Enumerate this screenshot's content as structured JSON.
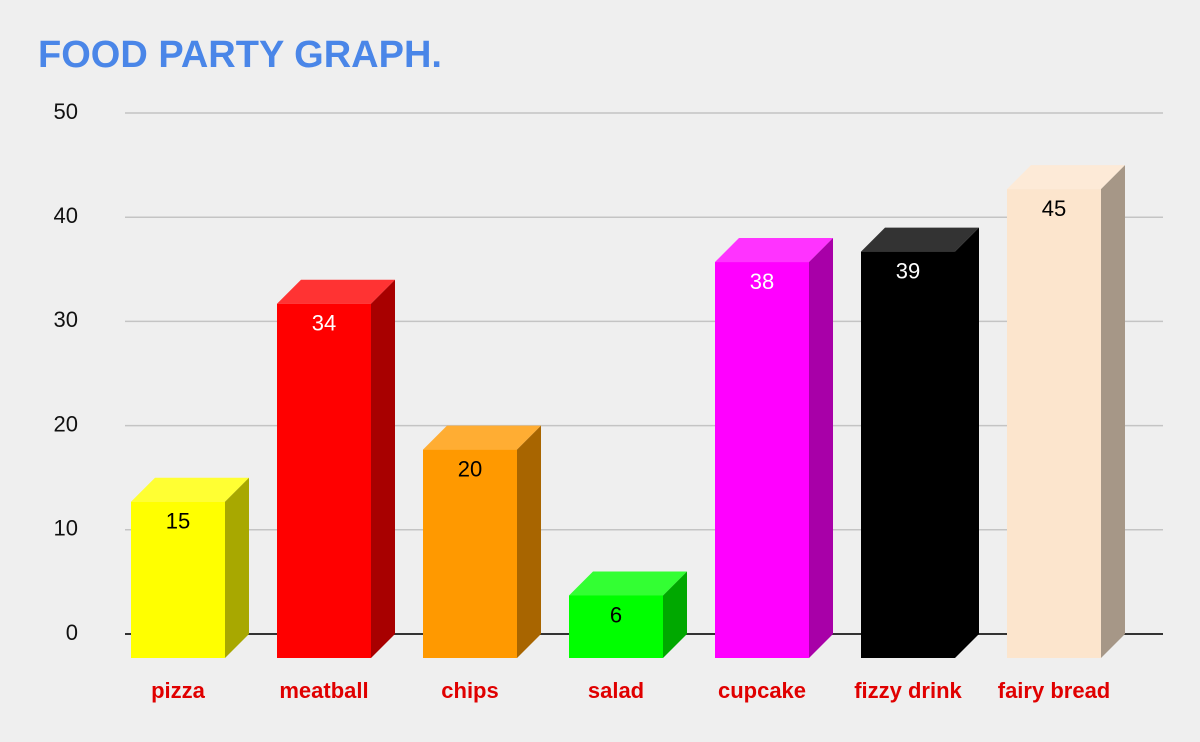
{
  "chart_data": {
    "type": "bar3d",
    "title": "FOOD PARTY GRAPH.",
    "categories": [
      "pizza",
      "meatball",
      "chips",
      "salad",
      "cupcake",
      "fizzy drink",
      "fairy bread"
    ],
    "values": [
      15,
      34,
      20,
      6,
      38,
      39,
      45
    ],
    "colors": [
      "#ffff00",
      "#ff0000",
      "#ff9900",
      "#00ff00",
      "#ff00ff",
      "#000000",
      "#fce5cd"
    ],
    "label_colors": [
      "#000000",
      "#ffffff",
      "#000000",
      "#000000",
      "#ffffff",
      "#ffffff",
      "#000000"
    ],
    "ylim": [
      0,
      50
    ],
    "yticks": [
      0,
      10,
      20,
      30,
      40,
      50
    ],
    "grid": true
  }
}
